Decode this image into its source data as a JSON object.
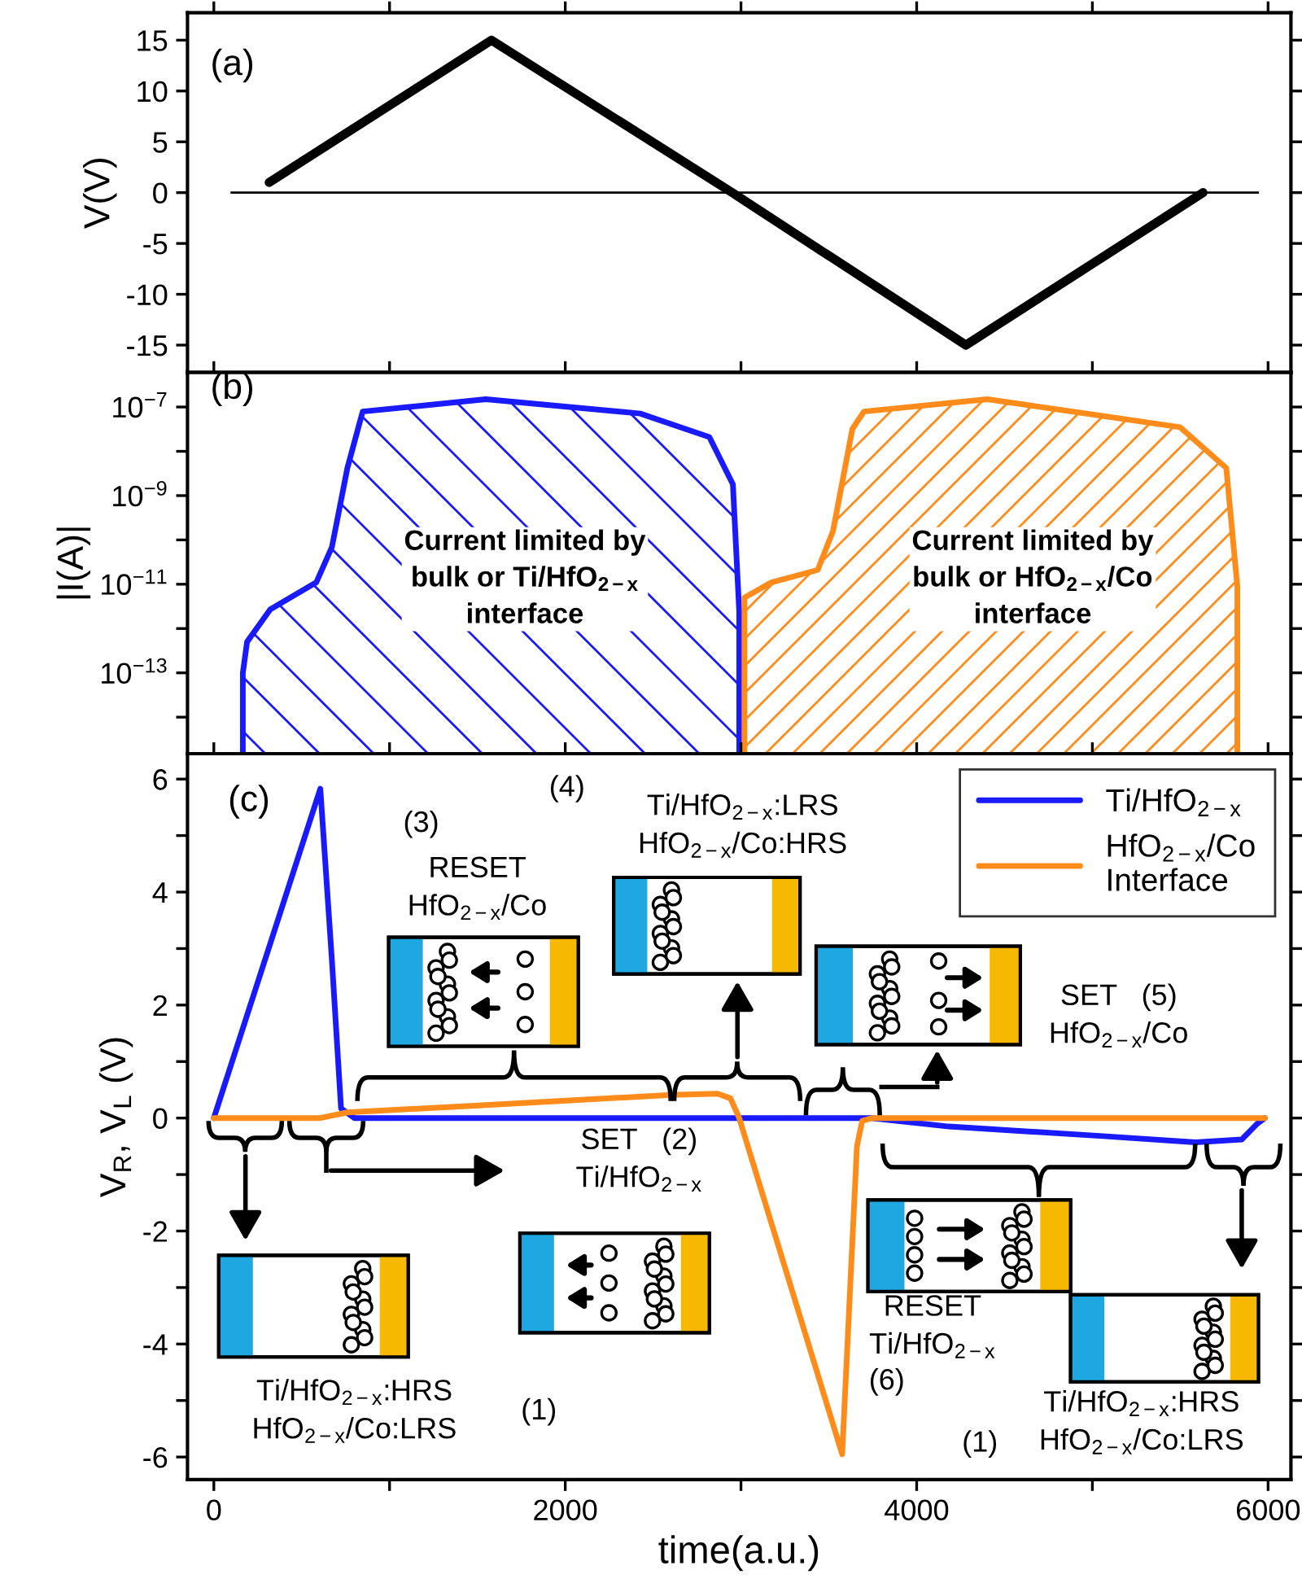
{
  "chart_data": [
    {
      "type": "line",
      "ylabel": "V(V)",
      "annotations": [
        "(a)"
      ],
      "x": [
        315,
        1580,
        2950,
        4280,
        5630
      ],
      "series": [
        {
          "color": "#000000",
          "values": [
            1,
            15,
            0,
            -15,
            0
          ]
        }
      ],
      "xlim": [
        -150,
        6130
      ],
      "xticks": [
        0,
        {
          "value": 1000,
          "label": null
        },
        2000,
        {
          "value": 3000,
          "label": null
        },
        4000,
        {
          "value": 5000,
          "label": null
        },
        6000
      ],
      "ylim": [
        -17.7,
        17.7
      ],
      "yticks": [
        -15,
        -10,
        -5,
        0,
        5,
        10,
        15
      ],
      "tick_labels": "y",
      "ref_lines": [
        {
          "axis": "y",
          "value": 0,
          "color": "#000000"
        }
      ]
    },
    {
      "type": "area",
      "ylabel": "|I(A)|",
      "log": "y",
      "annotations": [
        "(b)",
        "Current limited by\nbulk or Ti/HfO$_{2−x}$\ninterface",
        "Current limited by\nbulk or HfO$_{2−x}$/Co\ninterface"
      ],
      "series": [
        {
          "color": "#1a1aff",
          "x": [
            165,
            189,
            321,
            583,
            672,
            760,
            847,
            1548,
            2427,
            2820,
            2954,
            2990
          ],
          "values": [
            1e-13,
            5e-13,
            2.7e-12,
            1.1e-11,
            6.9e-11,
            4.2e-09,
            7.9e-08,
            1.5e-07,
            7.1e-08,
            2.1e-08,
            1.8e-09,
            2.5e-12
          ]
        },
        {
          "color": "#ff8c1a",
          "x": [
            3020,
            3173,
            3437,
            3524,
            3634,
            3700,
            4402,
            5499,
            5762,
            5825
          ],
          "values": [
            5e-12,
            1.1e-11,
            2.1e-11,
            1.6e-10,
            3.2e-08,
            7.9e-08,
            1.5e-07,
            3.5e-08,
            4.2e-09,
            8.9e-12
          ]
        }
      ],
      "xlim": [
        -150,
        6130
      ],
      "xticks": [
        0,
        {
          "value": 1000,
          "label": null
        },
        2000,
        {
          "value": 3000,
          "label": null
        },
        4000,
        {
          "value": 5000,
          "label": null
        },
        6000
      ],
      "ylim": [
        1.5e-15,
        6e-07
      ],
      "yticks": [
        {
          "value": 1e-14,
          "label": null
        },
        {
          "value": 1e-13,
          "label": "10$^{−13}$"
        },
        {
          "value": 1e-12,
          "label": null
        },
        {
          "value": 1e-11,
          "label": "10$^{−11}$"
        },
        {
          "value": 1e-10,
          "label": null
        },
        {
          "value": 1e-09,
          "label": "10$^{−9}$"
        },
        {
          "value": 1e-08,
          "label": null
        },
        {
          "value": 1e-07,
          "label": "10$^{−7}$"
        }
      ],
      "tick_labels": "y"
    },
    {
      "type": "line",
      "xlabel": "time(a.u.)",
      "ylabel": "V$_{R}$, V$_{L}$ (V)",
      "legend": "top right",
      "annotations": [
        "(c)",
        "(3)",
        "RESET\nHfO$_{2−x}$/Co",
        "(4)",
        "Ti/HfO$_{2−x}$:LRS\nHfO$_{2−x}$/Co:HRS",
        "SET   (5)\nHfO$_{2−x}$/Co",
        "SET   (2)\nTi/HfO$_{2−x}$",
        "Ti/HfO$_{2−x}$:HRS\nHfO$_{2−x}$/Co:LRS",
        "(1)",
        "RESET\nTi/HfO$_{2−x}$",
        "(6)",
        "(1)",
        "Ti/HfO$_{2−x}$:HRS\nHfO$_{2−x}$/Co:LRS"
      ],
      "series": [
        {
          "name": "Ti/HfO$_{2−x}$",
          "color": "#1a1aff",
          "x": [
            0,
            606,
            672,
            724,
            800,
            3744,
            4183,
            5060,
            5587,
            5850,
            5938,
            5982
          ],
          "values": [
            0,
            5.83,
            2.79,
            0.17,
            0,
            0,
            -0.15,
            -0.32,
            -0.43,
            -0.38,
            -0.1,
            0
          ]
        },
        {
          "name": "HfO$_{2−x}$/Co\nInterface",
          "color": "#ff8c1a",
          "x": [
            0,
            606,
            760,
            1548,
            2603,
            2866,
            2940,
            2990,
            3576,
            3660,
            3690,
            3750,
            5982
          ],
          "values": [
            0,
            0,
            0.1,
            0.23,
            0.41,
            0.43,
            0.35,
            0,
            -5.95,
            -0.5,
            -0.05,
            0,
            0
          ]
        }
      ],
      "xlim": [
        -150,
        6130
      ],
      "xticks": [
        0,
        {
          "value": 1000,
          "label": null
        },
        2000,
        {
          "value": 3000,
          "label": null
        },
        4000,
        {
          "value": 5000,
          "label": null
        },
        6000
      ],
      "ylim": [
        -6.4,
        6.45
      ],
      "yticks": [
        -6,
        {
          "value": -5,
          "label": null
        },
        -4,
        {
          "value": -3,
          "label": null
        },
        -2,
        {
          "value": -1,
          "label": null
        },
        0,
        {
          "value": 1,
          "label": null
        },
        2,
        {
          "value": 3,
          "label": null
        },
        4,
        {
          "value": 5,
          "label": null
        },
        6
      ]
    }
  ]
}
